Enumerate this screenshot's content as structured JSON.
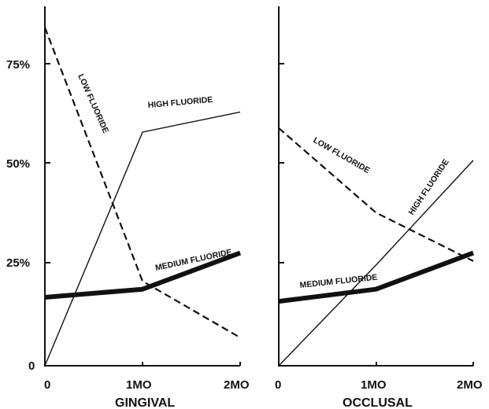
{
  "chart_data": [
    {
      "type": "line",
      "xlabel": "GINGIVAL",
      "x": [
        "0",
        "1MO",
        "2MO"
      ],
      "y_ticks": [
        "0",
        "25%",
        "50%",
        "75%"
      ],
      "ylim": [
        0,
        90
      ],
      "grid": false,
      "series": [
        {
          "name": "HIGH FLUORIDE",
          "style": "thin-solid",
          "values": [
            0,
            58,
            63
          ]
        },
        {
          "name": "LOW FLUORIDE",
          "style": "dashed",
          "values": [
            84,
            21,
            7
          ]
        },
        {
          "name": "MEDIUM FLUORIDE",
          "style": "thick-solid",
          "values": [
            17,
            19,
            28
          ]
        }
      ]
    },
    {
      "type": "line",
      "xlabel": "OCCLUSAL",
      "x": [
        "0",
        "1MO",
        "2MO"
      ],
      "ylim": [
        0,
        90
      ],
      "grid": false,
      "series": [
        {
          "name": "LOW FLUORIDE",
          "style": "dashed",
          "values": [
            59,
            38,
            26
          ]
        },
        {
          "name": "HIGH FLUORIDE",
          "style": "thin-solid",
          "values": [
            0,
            25,
            51
          ]
        },
        {
          "name": "MEDIUM FLUORIDE",
          "style": "thick-solid",
          "values": [
            16,
            19,
            28
          ]
        }
      ]
    }
  ],
  "colors": {
    "ink": "#111111",
    "background": "#ffffff"
  }
}
